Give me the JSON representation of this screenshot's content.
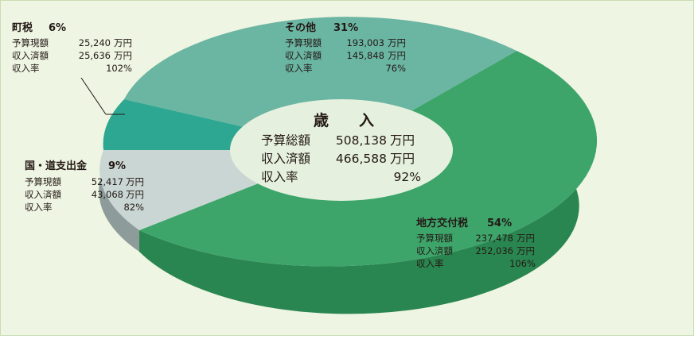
{
  "colors": {
    "background": "#eef5e2",
    "kofuzei": "#3da56a",
    "kofuzei_side": "#2a8650",
    "sonota": "#6bb5a3",
    "chozei": "#2ea792",
    "kuni": "#c9d6d3",
    "kuni_side": "#8d9c9a",
    "center": "#e5f1de"
  },
  "chart_data": {
    "type": "pie",
    "style": "3d-donut",
    "title": "歳　　入",
    "slices": [
      {
        "name": "地方交付税",
        "percent": "54%",
        "value": 54,
        "rows": [
          {
            "label": "予算現額",
            "amount": "237,478",
            "unit": "万円"
          },
          {
            "label": "収入済額",
            "amount": "252,036",
            "unit": "万円"
          },
          {
            "label": "収入率",
            "amount": "106%",
            "unit": ""
          }
        ]
      },
      {
        "name": "その他",
        "percent": "31%",
        "value": 31,
        "rows": [
          {
            "label": "予算現額",
            "amount": "193,003",
            "unit": "万円"
          },
          {
            "label": "収入済額",
            "amount": "145,848",
            "unit": "万円"
          },
          {
            "label": "収入率",
            "amount": "76%",
            "unit": ""
          }
        ]
      },
      {
        "name": "町税",
        "percent": "6%",
        "value": 6,
        "rows": [
          {
            "label": "予算現額",
            "amount": "25,240",
            "unit": "万円"
          },
          {
            "label": "収入済額",
            "amount": "25,636",
            "unit": "万円"
          },
          {
            "label": "収入率",
            "amount": "102%",
            "unit": ""
          }
        ]
      },
      {
        "name": "国・道支出金",
        "percent": "9%",
        "value": 9,
        "rows": [
          {
            "label": "予算現額",
            "amount": "52,417",
            "unit": "万円"
          },
          {
            "label": "収入済額",
            "amount": "43,068",
            "unit": "万円"
          },
          {
            "label": "収入率",
            "amount": "82%",
            "unit": ""
          }
        ]
      }
    ],
    "center": {
      "rows": [
        {
          "label": "予算総額",
          "amount": "508,138",
          "unit": "万円"
        },
        {
          "label": "収入済額",
          "amount": "466,588",
          "unit": "万円"
        },
        {
          "label": "収入率",
          "amount": "92%",
          "unit": ""
        }
      ]
    }
  }
}
